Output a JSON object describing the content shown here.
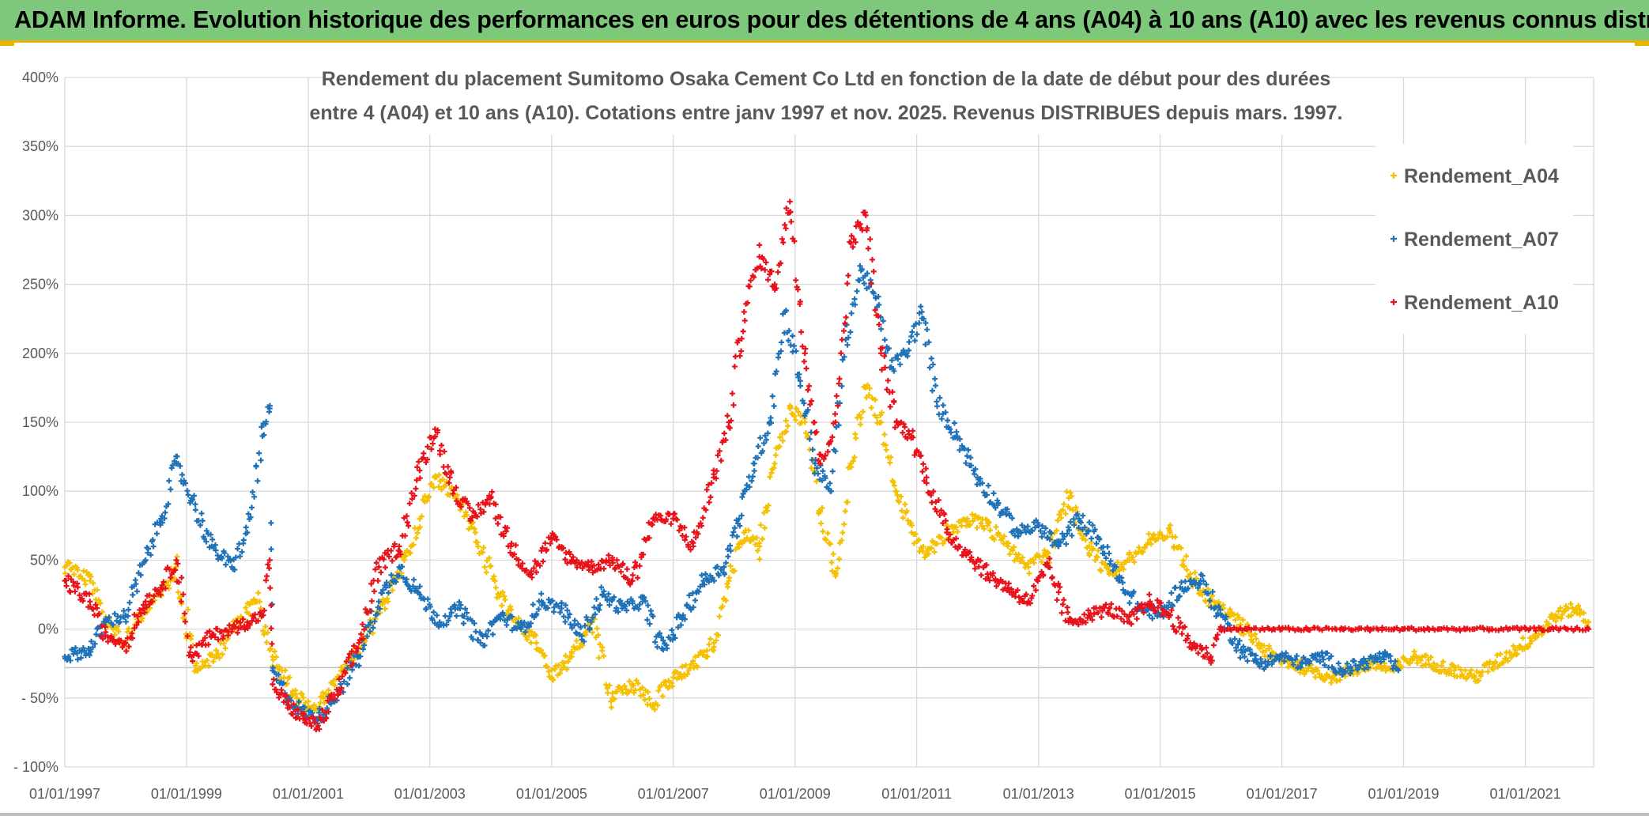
{
  "header": {
    "title": "ADAM Informe. Evolution historique des performances en euros pour des détentions de 4 ans (A04) à 10 ans (A10) avec les revenus connus distribués"
  },
  "colors": {
    "banner": "#7dc87b",
    "accent": "#e8b400",
    "A04": "#f5c000",
    "A07": "#1f72b8",
    "A10": "#e8121b",
    "grid": "#d9d9d9",
    "text": "#595959"
  },
  "chart_data": {
    "type": "scatter",
    "title_lines": [
      "Rendement du placement Sumitomo Osaka Cement Co Ltd en fonction de la date de début pour des durées",
      "entre 4 (A04) et 10 ans (A10). Cotations entre janv 1997 et nov. 2025. Revenus DISTRIBUES depuis mars. 1997."
    ],
    "xlabel": "",
    "ylabel": "",
    "x_ticks": [
      "01/01/1997",
      "01/01/1999",
      "01/01/2001",
      "01/01/2003",
      "01/01/2005",
      "01/01/2007",
      "01/01/2009",
      "01/01/2011",
      "01/01/2013",
      "01/01/2015",
      "01/01/2017",
      "01/01/2019",
      "01/01/2021"
    ],
    "y_ticks": [
      "400%",
      "350%",
      "300%",
      "250%",
      "200%",
      "150%",
      "100%",
      "50%",
      "0%",
      "- 50%",
      "- 100%"
    ],
    "xlim": [
      "1997-01-01",
      "2022-02-15"
    ],
    "ylim": [
      -100,
      400
    ],
    "grid": true,
    "legend_position": "top-right",
    "marker": "+",
    "series": [
      {
        "name": "Rendement_A04",
        "color": "#f5c000",
        "x": [
          "1997-01-01",
          "1997-06-01",
          "1997-09-01",
          "1998-01-01",
          "1998-05-01",
          "1998-08-01",
          "1998-11-01",
          "1999-03-01",
          "1999-07-01",
          "1999-11-01",
          "2000-03-01",
          "2000-06-01",
          "2000-10-01",
          "2001-01-01",
          "2001-04-01",
          "2001-08-01",
          "2001-12-01",
          "2002-04-01",
          "2002-08-01",
          "2002-11-01",
          "2003-02-01",
          "2003-06-01",
          "2003-10-01",
          "2004-02-01",
          "2004-06-01",
          "2004-10-01",
          "2005-01-01",
          "2005-05-01",
          "2005-09-01",
          "2006-01-01",
          "2006-05-01",
          "2006-09-01",
          "2007-01-01",
          "2007-05-01",
          "2007-09-01",
          "2007-12-01",
          "2008-03-01",
          "2008-06-01",
          "2008-09-01",
          "2008-12-01",
          "2009-03-01",
          "2009-06-01",
          "2009-09-01",
          "2009-12-01",
          "2010-03-01",
          "2010-06-01",
          "2010-09-01",
          "2010-12-01",
          "2011-03-01",
          "2011-07-01",
          "2011-11-01",
          "2012-03-01",
          "2012-07-01",
          "2012-11-01",
          "2013-03-01",
          "2013-07-01",
          "2013-11-01",
          "2014-03-01",
          "2014-07-01",
          "2014-11-01",
          "2015-03-01",
          "2015-07-01",
          "2015-11-01",
          "2016-03-01",
          "2016-07-01",
          "2016-11-01",
          "2017-03-01",
          "2017-07-01",
          "2017-11-01",
          "2018-03-01",
          "2018-07-01",
          "2018-11-01",
          "2019-03-01",
          "2019-07-01",
          "2019-11-01",
          "2020-03-01",
          "2020-07-01",
          "2020-11-01",
          "2021-03-01",
          "2021-07-01",
          "2021-11-01",
          "2022-01-15"
        ],
        "values": [
          45,
          35,
          5,
          -10,
          15,
          25,
          45,
          -30,
          -20,
          5,
          20,
          -20,
          -45,
          -58,
          -50,
          -30,
          -10,
          20,
          50,
          80,
          110,
          95,
          70,
          30,
          5,
          -10,
          -35,
          -20,
          5,
          -50,
          -40,
          -55,
          -35,
          -25,
          -10,
          35,
          70,
          60,
          120,
          160,
          150,
          85,
          40,
          120,
          175,
          150,
          100,
          70,
          55,
          70,
          80,
          75,
          60,
          45,
          55,
          95,
          60,
          40,
          50,
          65,
          70,
          40,
          20,
          10,
          -5,
          -20,
          -25,
          -30,
          -35,
          -30,
          -25,
          -30,
          -20,
          -25,
          -30,
          -35,
          -25,
          -15,
          -5,
          10,
          15,
          5
        ]
      },
      {
        "name": "Rendement_A07",
        "color": "#1f72b8",
        "x": [
          "1997-01-01",
          "1997-06-01",
          "1997-09-01",
          "1998-01-01",
          "1998-05-01",
          "1998-08-01",
          "1998-11-01",
          "1999-02-01",
          "1999-06-01",
          "1999-10-01",
          "2000-01-01",
          "2000-04-01",
          "2000-05-15",
          "2000-06-01",
          "2000-09-01",
          "2000-12-01",
          "2001-03-01",
          "2001-07-01",
          "2001-11-01",
          "2002-03-01",
          "2002-07-01",
          "2002-11-01",
          "2003-03-01",
          "2003-07-01",
          "2003-11-01",
          "2004-03-01",
          "2004-07-01",
          "2004-11-01",
          "2005-03-01",
          "2005-07-01",
          "2005-11-01",
          "2006-03-01",
          "2006-07-01",
          "2006-11-01",
          "2007-03-01",
          "2007-07-01",
          "2007-11-01",
          "2008-02-01",
          "2008-05-01",
          "2008-08-01",
          "2008-11-01",
          "2009-02-01",
          "2009-05-01",
          "2009-08-01",
          "2009-11-01",
          "2010-02-01",
          "2010-05-01",
          "2010-08-01",
          "2010-11-01",
          "2011-02-01",
          "2011-05-01",
          "2011-09-01",
          "2012-01-01",
          "2012-05-01",
          "2012-09-01",
          "2013-01-01",
          "2013-05-01",
          "2013-09-01",
          "2014-01-01",
          "2014-05-01",
          "2014-09-01",
          "2015-01-01",
          "2015-05-01",
          "2015-09-01",
          "2016-01-01",
          "2016-05-01",
          "2016-09-01",
          "2017-01-01",
          "2017-05-01",
          "2017-09-01",
          "2018-01-01",
          "2018-05-01",
          "2018-09-01",
          "2018-12-01"
        ],
        "values": [
          -20,
          -15,
          5,
          10,
          50,
          80,
          120,
          95,
          60,
          45,
          70,
          140,
          160,
          -30,
          -50,
          -60,
          -65,
          -45,
          -20,
          20,
          45,
          25,
          5,
          15,
          -10,
          10,
          0,
          20,
          15,
          -5,
          25,
          15,
          20,
          -15,
          10,
          35,
          45,
          80,
          120,
          150,
          230,
          180,
          120,
          100,
          210,
          260,
          240,
          190,
          200,
          230,
          165,
          140,
          110,
          90,
          70,
          75,
          60,
          80,
          65,
          35,
          15,
          10,
          30,
          35,
          10,
          -15,
          -25,
          -20,
          -25,
          -20,
          -30,
          -25,
          -20,
          -30
        ]
      },
      {
        "name": "Rendement_A10",
        "color": "#e8121b",
        "x": [
          "1997-01-01",
          "1997-06-01",
          "1997-09-01",
          "1998-01-01",
          "1998-05-01",
          "1998-08-01",
          "1998-11-01",
          "1999-02-01",
          "1999-06-01",
          "1999-10-01",
          "2000-01-01",
          "2000-04-01",
          "2000-05-15",
          "2000-06-01",
          "2000-09-01",
          "2000-12-01",
          "2001-03-01",
          "2001-07-01",
          "2001-11-01",
          "2002-03-01",
          "2002-07-01",
          "2002-11-01",
          "2003-02-01",
          "2003-05-01",
          "2003-09-01",
          "2004-01-01",
          "2004-05-01",
          "2004-09-01",
          "2005-01-01",
          "2005-05-01",
          "2005-09-01",
          "2006-01-01",
          "2006-05-01",
          "2006-09-01",
          "2007-01-01",
          "2007-05-01",
          "2007-09-01",
          "2007-12-01",
          "2008-03-01",
          "2008-06-01",
          "2008-09-01",
          "2008-12-01",
          "2009-03-01",
          "2009-06-01",
          "2009-09-01",
          "2009-12-01",
          "2010-03-01",
          "2010-06-01",
          "2010-09-01",
          "2010-12-01",
          "2011-03-01",
          "2011-07-01",
          "2011-11-01",
          "2012-03-01",
          "2012-07-01",
          "2012-11-01",
          "2013-03-01",
          "2013-07-01",
          "2013-11-01",
          "2014-03-01",
          "2014-07-01",
          "2014-11-01",
          "2015-03-01",
          "2015-07-01",
          "2015-11-01",
          "2016-01-01",
          "2016-06-01",
          "2017-01-01",
          "2017-06-01",
          "2018-01-01",
          "2018-06-01",
          "2019-01-01",
          "2019-06-01",
          "2020-01-01",
          "2020-06-01",
          "2021-01-01",
          "2021-06-01",
          "2022-01-15"
        ],
        "values": [
          35,
          20,
          -5,
          -10,
          20,
          30,
          50,
          -20,
          -5,
          0,
          5,
          10,
          50,
          -40,
          -55,
          -65,
          -70,
          -45,
          -10,
          45,
          60,
          115,
          145,
          110,
          80,
          95,
          60,
          40,
          65,
          50,
          45,
          50,
          35,
          80,
          80,
          60,
          110,
          150,
          230,
          270,
          250,
          310,
          200,
          120,
          150,
          280,
          300,
          200,
          150,
          140,
          110,
          70,
          55,
          40,
          30,
          20,
          45,
          5,
          10,
          15,
          5,
          20,
          10,
          -10,
          -20,
          0,
          0,
          0,
          0,
          0,
          0,
          0,
          0,
          0,
          0,
          0,
          0,
          0
        ]
      }
    ]
  }
}
